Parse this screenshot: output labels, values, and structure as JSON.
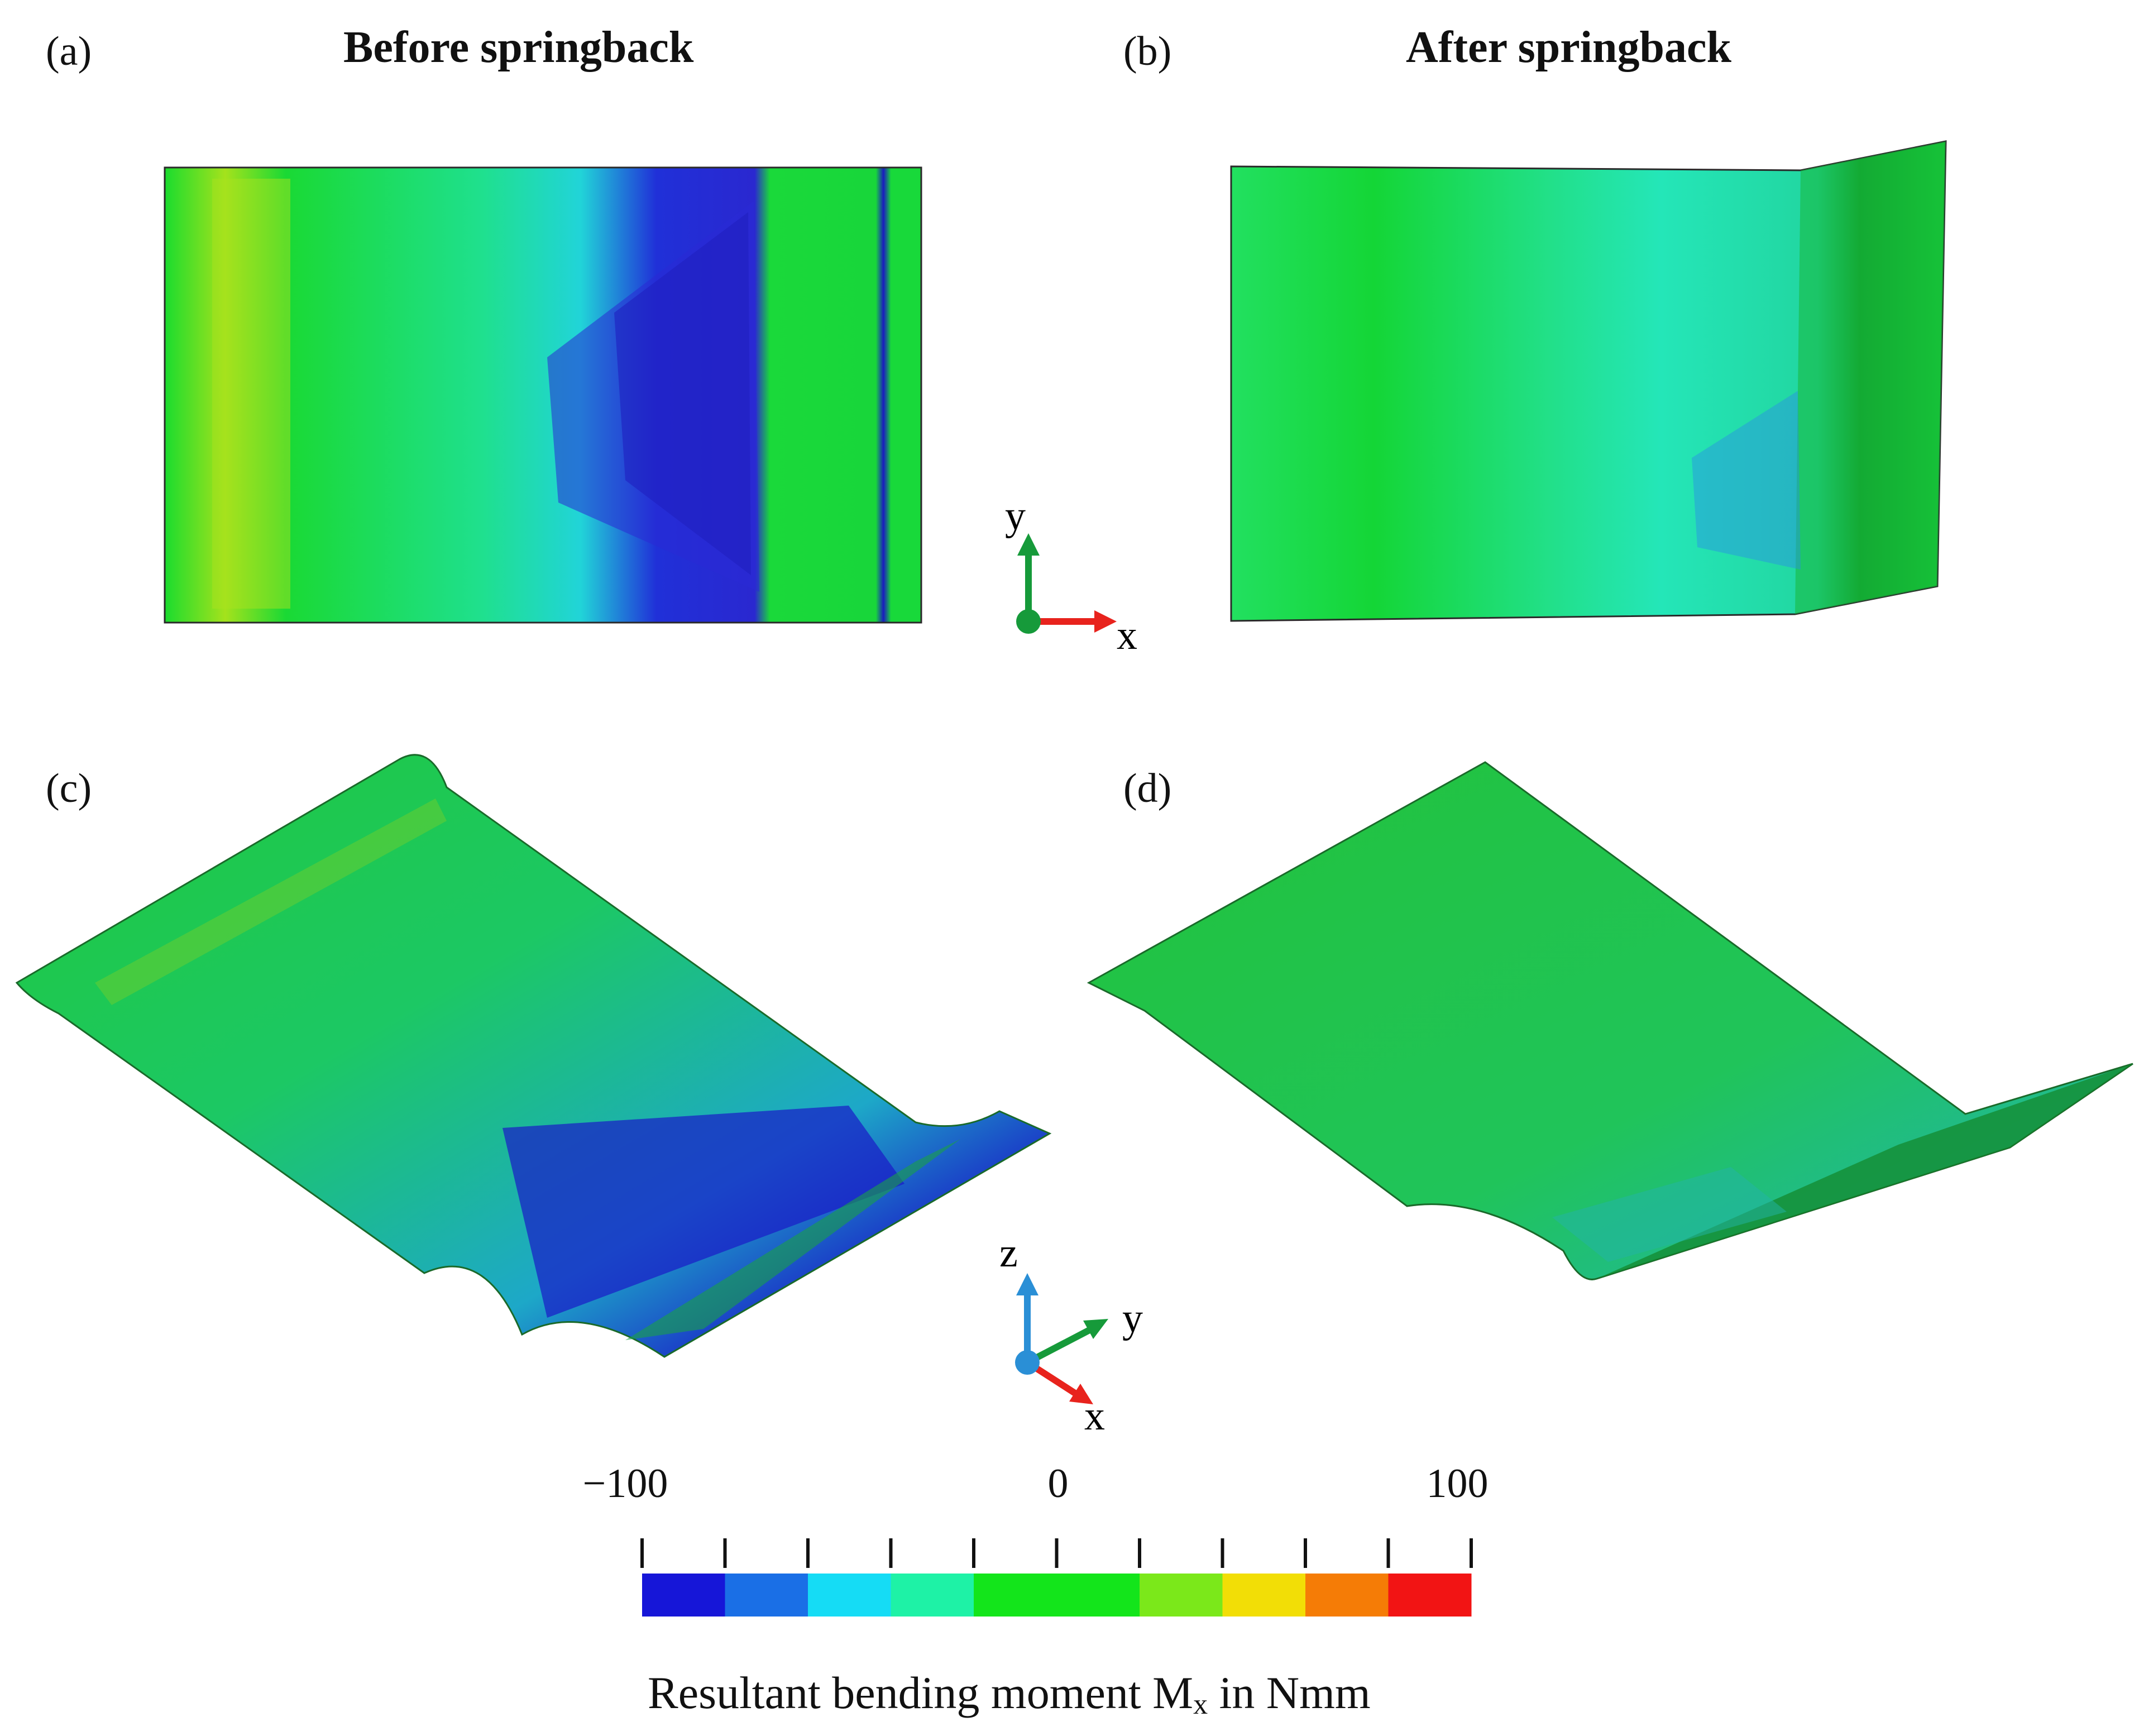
{
  "panels": {
    "a": {
      "label": "(a)",
      "title": "Before springback"
    },
    "b": {
      "label": "(b)",
      "title": "After springback"
    },
    "c": {
      "label": "(c)"
    },
    "d": {
      "label": "(d)"
    }
  },
  "axes_2d": {
    "y": "y",
    "x": "x"
  },
  "axes_3d": {
    "z": "z",
    "y": "y",
    "x": "x"
  },
  "colorbar": {
    "tick_labels": {
      "min": "−100",
      "mid": "0",
      "max": "100"
    },
    "range": [
      -100,
      100
    ],
    "bins": 10,
    "colors": [
      "#1616d8",
      "#1a6fe6",
      "#15dcf5",
      "#1ef2a6",
      "#13e51b",
      "#13e51b",
      "#7be81a",
      "#f2de06",
      "#f57c06",
      "#f21414"
    ],
    "caption_prefix": "Resultant bending moment M",
    "caption_sub": "x",
    "caption_suffix": " in Nmm"
  },
  "colors": {
    "green": "#16d93a",
    "blue": "#1a1acc",
    "cyan": "#20d8e0",
    "teal": "#1fe3a0",
    "yellow_green": "#9be01a",
    "axis_x": "#e8231d",
    "axis_y": "#169a3a",
    "axis_z": "#2a8fd6"
  }
}
